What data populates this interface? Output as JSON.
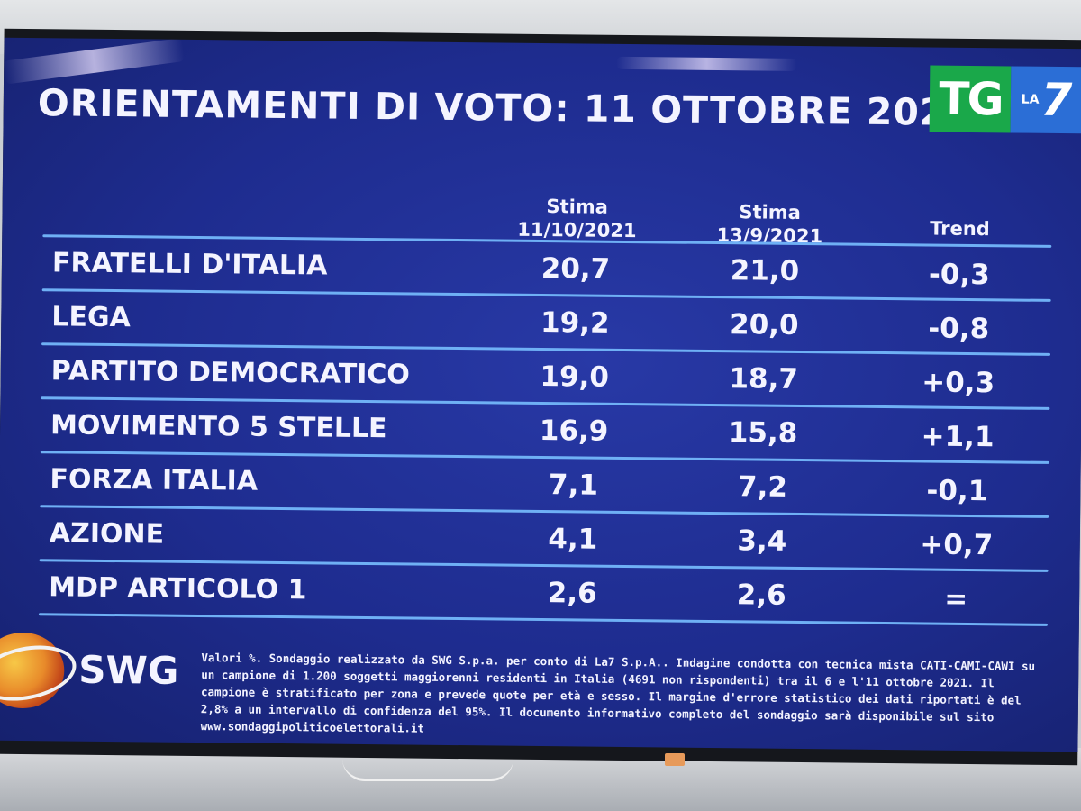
{
  "title": "ORIENTAMENTI DI VOTO: 11 OTTOBRE 2021",
  "logo": {
    "tg": "TG",
    "la": "LA",
    "seven": "7"
  },
  "columns": {
    "c1_line1": "Stima",
    "c1_line2": "11/10/2021",
    "c2_line1": "Stima",
    "c2_line2": "13/9/2021",
    "c3": "Trend"
  },
  "rows": [
    {
      "party": "FRATELLI D'ITALIA",
      "v1": "20,7",
      "v2": "21,0",
      "trend": "-0,3"
    },
    {
      "party": "LEGA",
      "v1": "19,2",
      "v2": "20,0",
      "trend": "-0,8"
    },
    {
      "party": "PARTITO DEMOCRATICO",
      "v1": "19,0",
      "v2": "18,7",
      "trend": "+0,3"
    },
    {
      "party": "MOVIMENTO 5 STELLE",
      "v1": "16,9",
      "v2": "15,8",
      "trend": "+1,1"
    },
    {
      "party": "FORZA ITALIA",
      "v1": "7,1",
      "v2": "7,2",
      "trend": "-0,1"
    },
    {
      "party": "AZIONE",
      "v1": "4,1",
      "v2": "3,4",
      "trend": "+0,7"
    },
    {
      "party": "MDP ARTICOLO 1",
      "v1": "2,6",
      "v2": "2,6",
      "trend": "="
    }
  ],
  "swg": "SWG",
  "footnote": "Valori %. Sondaggio realizzato da SWG S.p.a. per conto di La7 S.p.A.. Indagine condotta con tecnica mista CATI-CAMI-CAWI su un campione di 1.200 soggetti maggiorenni residenti in Italia (4691 non rispondenti) tra il 6 e l'11 ottobre 2021. Il campione è stratificato per zona e prevede quote per età e sesso. Il margine d'errore statistico dei dati riportati è del 2,8% a un intervallo di confidenza del 95%. Il documento informativo completo del sondaggio sarà disponibile sul sito www.sondaggipoliticoelettorali.it",
  "colors": {
    "screen": "#1f2c8a",
    "separator": "#6fb0f5",
    "tg_green": "#1aa84a",
    "la7_blue": "#2b6ed6"
  }
}
